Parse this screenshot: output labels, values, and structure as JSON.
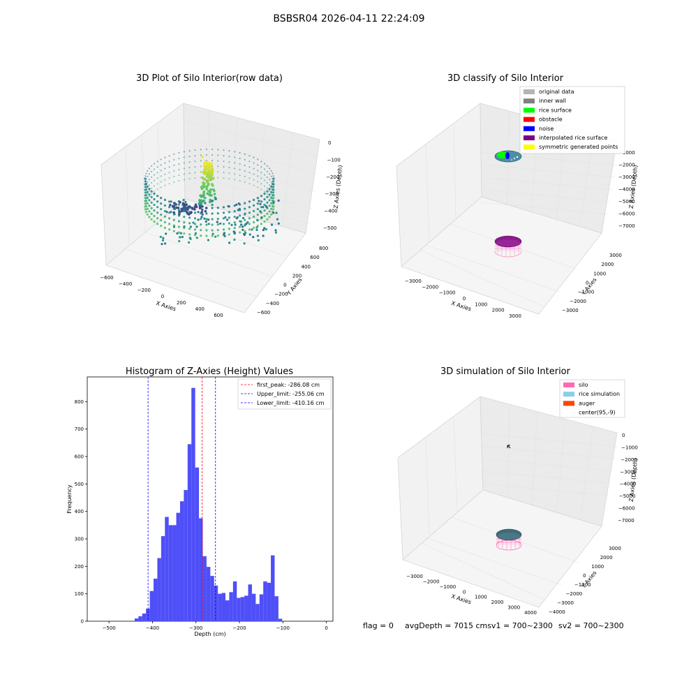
{
  "figure": {
    "suptitle": "BSBSR04 2026-04-11 22:24:09",
    "footer": {
      "flag": "flag = 0",
      "avg": "avgDepth = 7015 cmsv1 = 700~2300",
      "sv2": "sv2 = 700~2300"
    }
  },
  "panels": {
    "raw": {
      "title": "3D Plot of Silo Interior(row data)",
      "xlabel": "X Axies",
      "ylabel": "Y Axies",
      "zlabel": "Z Axies (Depth)",
      "xticks": [
        "−600",
        "−400",
        "−200",
        "0",
        "200",
        "400",
        "600"
      ],
      "yticks": [
        "−600",
        "−400",
        "−200",
        "0",
        "200",
        "400",
        "600",
        "800"
      ],
      "zticks": [
        "0",
        "−100",
        "−200",
        "−300",
        "−400",
        "−500"
      ]
    },
    "classify": {
      "title": "3D classify of Silo Interior",
      "xlabel": "X Axies",
      "ylabel": "Y Axies",
      "zlabel": "Z Axies (Depth)",
      "xticks": [
        "−3000",
        "−2000",
        "−1000",
        "0",
        "1000",
        "2000",
        "3000"
      ],
      "yticks": [
        "−3000",
        "−2000",
        "−1000",
        "0",
        "1000",
        "2000",
        "3000"
      ],
      "zticks": [
        "−1000",
        "−2000",
        "−3000",
        "−4000",
        "−5000",
        "−6000",
        "−7000"
      ],
      "legend": [
        {
          "label": "original data",
          "color": "#b4b4b4"
        },
        {
          "label": "inner wall",
          "color": "#808080"
        },
        {
          "label": "rice surface",
          "color": "#00ff00"
        },
        {
          "label": "obstacle",
          "color": "#ff0000"
        },
        {
          "label": "noise",
          "color": "#0000ff"
        },
        {
          "label": "interpolated rice surface",
          "color": "#800080"
        },
        {
          "label": "symmetric generated points",
          "color": "#ffff00"
        }
      ]
    },
    "simulation": {
      "title": "3D simulation of Silo Interior",
      "xlabel": "X Axies",
      "ylabel": "Y Axies",
      "zlabel": "Z Axies (Depth)",
      "xticks": [
        "−3000",
        "−2000",
        "−1000",
        "0",
        "1000",
        "2000",
        "3000",
        "4000"
      ],
      "yticks": [
        "−4000",
        "−3000",
        "−2000",
        "−1000",
        "0",
        "1000",
        "2000",
        "3000"
      ],
      "zticks": [
        "0",
        "−1000",
        "−2000",
        "−3000",
        "−4000",
        "−5000",
        "−6000",
        "−7000"
      ],
      "legend": [
        {
          "label": "silo",
          "color": "#ff69b4"
        },
        {
          "label": "rice simulation",
          "color": "#87ceeb"
        },
        {
          "label": "auger",
          "color": "#ff4500"
        },
        {
          "label": "center(95,-9)",
          "color": ""
        }
      ]
    }
  },
  "chart_data": [
    {
      "type": "bar",
      "title": "Histogram of Z-Axies (Height) Values",
      "xlabel": "Depth (cm)",
      "ylabel": "Frequency",
      "xlim": [
        -550,
        15
      ],
      "ylim": [
        0,
        890
      ],
      "xticks": [
        -500,
        -400,
        -300,
        -200,
        -100,
        0
      ],
      "yticks": [
        0,
        100,
        200,
        300,
        400,
        500,
        600,
        700,
        800
      ],
      "bar_color": "#4f4ff8",
      "bin_start": -441,
      "bin_width": 8.7,
      "values": [
        10,
        18,
        28,
        46,
        110,
        155,
        230,
        310,
        380,
        350,
        350,
        395,
        437,
        478,
        645,
        850,
        560,
        375,
        237,
        198,
        165,
        130,
        100,
        103,
        76,
        106,
        145,
        85,
        88,
        93,
        134,
        100,
        63,
        98,
        145,
        140,
        240,
        91,
        9
      ],
      "vlines": [
        {
          "label": "first_peak: -286.08 cm",
          "x": -286.08,
          "color": "#ff0000"
        },
        {
          "label": "Upper_limit: -255.06 cm",
          "x": -255.06,
          "color": "#0000ff"
        },
        {
          "label": "Lower_limit: -410.16 cm",
          "x": -410.16,
          "color": "#0000ff"
        }
      ],
      "legend_position": "upper right"
    }
  ]
}
